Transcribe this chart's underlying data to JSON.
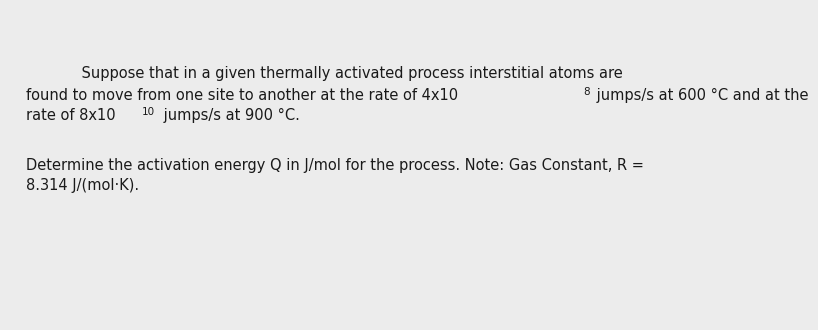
{
  "background_color": "#ececec",
  "text_color": "#1a1a1a",
  "font_size": 10.5,
  "sup_font_size": 7.5,
  "line1_indent": "            Suppose that in a given thermally activated process interstitial atoms are",
  "line2_base": "found to move from one site to another at the rate of 4x10",
  "line2_sup": "8",
  "line2_rest": " jumps/s at 600 °C and at the",
  "line3_base": "rate of 8x10",
  "line3_sup": "10",
  "line3_rest": " jumps/s at 900 °C.",
  "line4": "Determine the activation energy Q in J/mol for the process. Note: Gas Constant, R =",
  "line5": "8.314 J/(mol·K)."
}
